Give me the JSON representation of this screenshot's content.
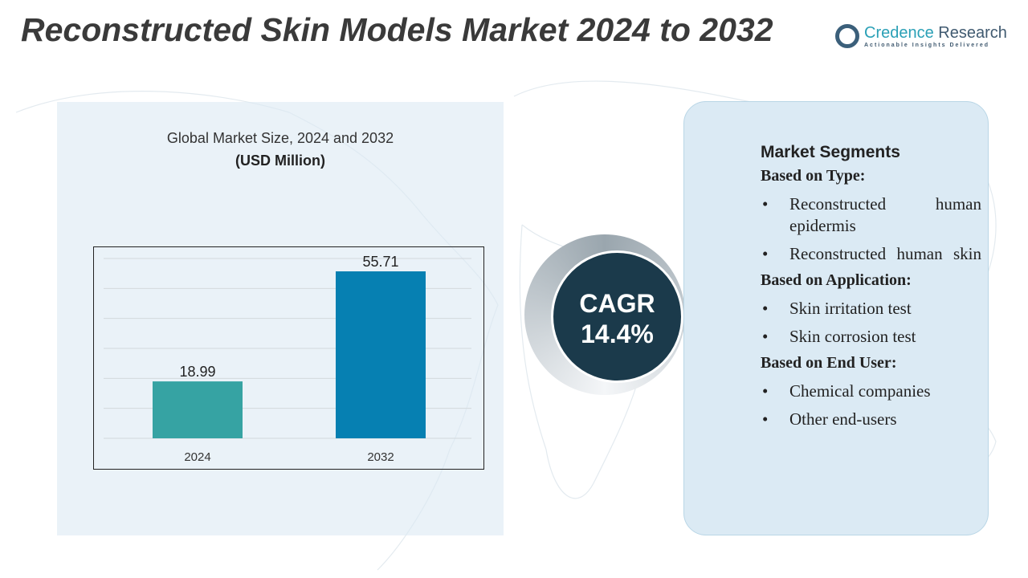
{
  "title": "Reconstructed Skin Models Market 2024 to 2032",
  "logo": {
    "name_part1": "Credence",
    "name_part2": "Research",
    "tagline": "Actionable Insights Delivered"
  },
  "chart_data": {
    "type": "bar",
    "title": "Global Market Size, 2024 and 2032",
    "subtitle": "(USD Million)",
    "categories": [
      "2024",
      "2032"
    ],
    "values": [
      18.99,
      55.71
    ],
    "labels": [
      "18.99",
      "55.71"
    ],
    "colors": [
      "#36a3a3",
      "#0680b2"
    ],
    "grid": true,
    "ylim": [
      0,
      60
    ]
  },
  "cagr": {
    "label": "CAGR",
    "value": "14.4%"
  },
  "segments": {
    "heading": "Market Segments",
    "groups": [
      {
        "title": "Based on Type:",
        "items": [
          "Reconstructed human epidermis",
          "Reconstructed human skin"
        ]
      },
      {
        "title": "Based on Application:",
        "items": [
          "Skin irritation test",
          "Skin corrosion test"
        ]
      },
      {
        "title": "Based on End User:",
        "items": [
          "Chemical companies",
          "Other end-users"
        ]
      }
    ]
  }
}
